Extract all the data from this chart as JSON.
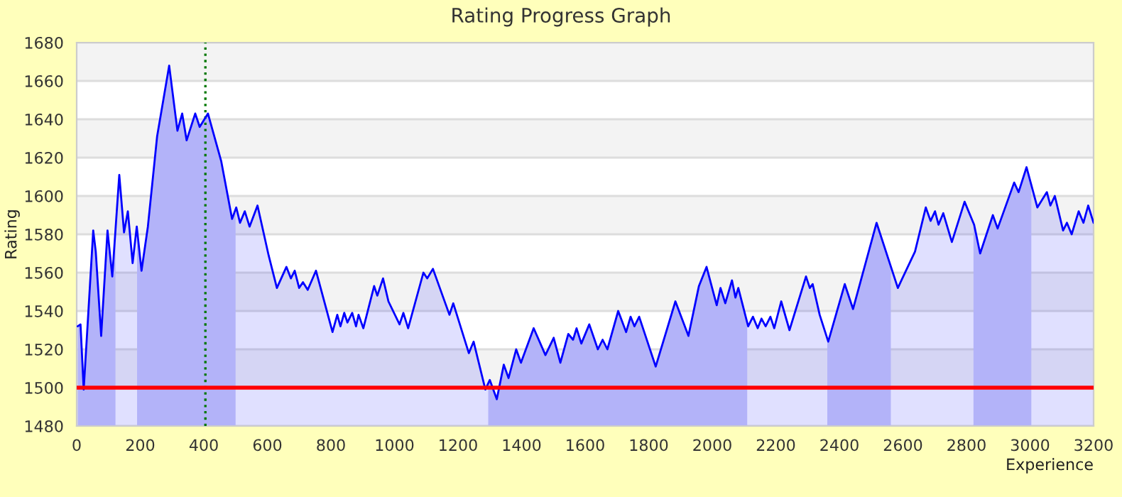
{
  "chart_data": {
    "type": "area",
    "title": "Rating Progress Graph",
    "xlabel": "Experience",
    "ylabel": "Rating",
    "xlim": [
      0,
      3200
    ],
    "xticks": [
      0,
      200,
      400,
      600,
      800,
      1000,
      1200,
      1400,
      1600,
      1800,
      2000,
      2200,
      2400,
      2600,
      2800,
      3000,
      3200
    ],
    "ylim": [
      1480,
      1680
    ],
    "yticks": [
      1480,
      1500,
      1520,
      1540,
      1560,
      1580,
      1600,
      1620,
      1640,
      1660,
      1680
    ],
    "grid": "y",
    "series": [
      {
        "color": "#0000ff",
        "x": [
          3,
          12,
          22,
          33,
          52,
          60,
          77,
          97,
          112,
          134,
          149,
          161,
          176,
          189,
          204,
          224,
          253,
          291,
          317,
          332,
          346,
          373,
          387,
          413,
          455,
          489,
          502,
          514,
          529,
          544,
          569,
          604,
          630,
          660,
          674,
          686,
          700,
          712,
          727,
          753,
          805,
          820,
          830,
          842,
          852,
          867,
          879,
          887,
          902,
          936,
          946,
          964,
          981,
          1016,
          1028,
          1043,
          1091,
          1103,
          1121,
          1173,
          1185,
          1234,
          1249,
          1286,
          1300,
          1322,
          1344,
          1359,
          1383,
          1398,
          1438,
          1475,
          1501,
          1522,
          1547,
          1562,
          1573,
          1588,
          1613,
          1640,
          1655,
          1670,
          1704,
          1729,
          1743,
          1755,
          1770,
          1822,
          1884,
          1925,
          1958,
          1982,
          2014,
          2026,
          2041,
          2062,
          2073,
          2082,
          2113,
          2128,
          2143,
          2155,
          2168,
          2183,
          2195,
          2217,
          2243,
          2295,
          2307,
          2316,
          2338,
          2365,
          2417,
          2443,
          2517,
          2584,
          2638,
          2672,
          2687,
          2701,
          2712,
          2727,
          2754,
          2794,
          2824,
          2843,
          2883,
          2898,
          2950,
          2964,
          2989,
          3023,
          3053,
          3064,
          3078,
          3104,
          3116,
          3131,
          3153,
          3168,
          3183,
          3200
        ],
        "values": [
          1532,
          1533,
          1499,
          1529,
          1582,
          1571,
          1527,
          1582,
          1558,
          1611,
          1581,
          1592,
          1565,
          1584,
          1561,
          1584,
          1631,
          1668,
          1634,
          1643,
          1629,
          1643,
          1636,
          1643,
          1618,
          1588,
          1594,
          1586,
          1592,
          1584,
          1595,
          1569,
          1552,
          1563,
          1557,
          1561,
          1552,
          1555,
          1551,
          1561,
          1529,
          1538,
          1532,
          1539,
          1534,
          1539,
          1532,
          1538,
          1531,
          1553,
          1548,
          1557,
          1545,
          1533,
          1539,
          1531,
          1560,
          1557,
          1562,
          1538,
          1544,
          1518,
          1524,
          1499,
          1504,
          1494,
          1512,
          1505,
          1520,
          1513,
          1531,
          1517,
          1526,
          1513,
          1528,
          1525,
          1531,
          1523,
          1533,
          1520,
          1525,
          1520,
          1540,
          1529,
          1537,
          1532,
          1537,
          1511,
          1545,
          1527,
          1553,
          1563,
          1543,
          1552,
          1544,
          1556,
          1547,
          1552,
          1532,
          1537,
          1531,
          1536,
          1532,
          1537,
          1531,
          1545,
          1530,
          1558,
          1552,
          1554,
          1538,
          1524,
          1554,
          1541,
          1586,
          1552,
          1571,
          1594,
          1587,
          1592,
          1585,
          1591,
          1576,
          1597,
          1585,
          1570,
          1590,
          1583,
          1607,
          1602,
          1615,
          1594,
          1602,
          1595,
          1600,
          1582,
          1586,
          1580,
          1592,
          1586,
          1595,
          1586
        ]
      }
    ],
    "ref_lines": [
      {
        "axis": "y",
        "value": 1500,
        "label": null,
        "color": "#ff0000",
        "line_style": "solid"
      },
      {
        "axis": "x",
        "value": 405,
        "label": null,
        "color": "#007700",
        "line_style": "dotted"
      }
    ],
    "bands": [
      {
        "axis": "x",
        "from": 0,
        "to": 122,
        "label": null,
        "color": "#ccccf9"
      },
      {
        "axis": "x",
        "from": 190,
        "to": 500,
        "label": null,
        "color": "#ccccf9"
      },
      {
        "axis": "x",
        "from": 1295,
        "to": 2110,
        "label": null,
        "color": "#ccccf9"
      },
      {
        "axis": "x",
        "from": 2362,
        "to": 2562,
        "label": null,
        "color": "#ccccf9"
      },
      {
        "axis": "x",
        "from": 2822,
        "to": 3004,
        "label": null,
        "color": "#ccccf9"
      }
    ]
  }
}
